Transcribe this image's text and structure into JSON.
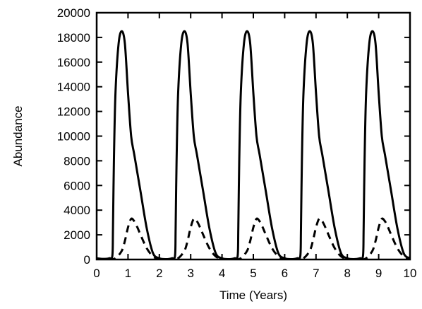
{
  "chart_data": {
    "type": "line",
    "title": "",
    "xlabel": "Time (Years)",
    "ylabel": "Abundance",
    "xlim": [
      0,
      10
    ],
    "ylim": [
      0,
      20000
    ],
    "xticks": [
      0,
      1,
      2,
      3,
      4,
      5,
      6,
      7,
      8,
      9,
      10
    ],
    "yticks": [
      0,
      2000,
      4000,
      6000,
      8000,
      10000,
      12000,
      14000,
      16000,
      18000,
      20000
    ],
    "grid": false,
    "legend": "none",
    "series": [
      {
        "style": "solid",
        "color": "#000000",
        "x": [
          0,
          0.2,
          0.4,
          0.5,
          0.52,
          0.55,
          0.6,
          0.7,
          0.8,
          0.9,
          1.0,
          1.1,
          1.2,
          1.4,
          1.6,
          1.8,
          2.0,
          2.2,
          2.4,
          2.5,
          2.52,
          2.55,
          2.6,
          2.7,
          2.8,
          2.9,
          3.0,
          3.1,
          3.2,
          3.4,
          3.6,
          3.8,
          4.0,
          4.2,
          4.4,
          4.5,
          4.52,
          4.55,
          4.6,
          4.7,
          4.8,
          4.9,
          5.0,
          5.1,
          5.2,
          5.4,
          5.6,
          5.8,
          6.0,
          6.2,
          6.4,
          6.5,
          6.52,
          6.55,
          6.6,
          6.7,
          6.8,
          6.9,
          7.0,
          7.1,
          7.2,
          7.4,
          7.6,
          7.8,
          8.0,
          8.2,
          8.4,
          8.5,
          8.52,
          8.55,
          8.6,
          8.7,
          8.8,
          8.9,
          9.0,
          9.1,
          9.2,
          9.4,
          9.6,
          9.8,
          10.0
        ],
        "y": [
          100,
          50,
          100,
          300,
          2500,
          8000,
          13500,
          17500,
          18500,
          17500,
          13500,
          10000,
          8500,
          5500,
          2500,
          500,
          100,
          30,
          100,
          300,
          2500,
          8000,
          13500,
          17500,
          18500,
          17500,
          13500,
          10000,
          8500,
          5500,
          2500,
          500,
          100,
          30,
          100,
          300,
          2500,
          8000,
          13500,
          17500,
          18500,
          17500,
          13500,
          10000,
          8500,
          5500,
          2500,
          500,
          100,
          30,
          100,
          300,
          2500,
          8000,
          13500,
          17500,
          18500,
          17500,
          13500,
          10000,
          8500,
          5500,
          2500,
          500,
          100,
          30,
          100,
          300,
          2500,
          8000,
          13500,
          17500,
          18500,
          17500,
          13500,
          10000,
          8500,
          5500,
          2500,
          500,
          100
        ]
      },
      {
        "style": "dashed",
        "color": "#000000",
        "x": [
          0,
          0.4,
          0.6,
          0.8,
          0.9,
          1.0,
          1.1,
          1.2,
          1.3,
          1.4,
          1.6,
          1.8,
          2.0,
          2.4,
          2.6,
          2.8,
          2.9,
          3.0,
          3.1,
          3.2,
          3.3,
          3.4,
          3.6,
          3.8,
          4.0,
          4.4,
          4.6,
          4.8,
          4.9,
          5.0,
          5.1,
          5.2,
          5.3,
          5.4,
          5.6,
          5.8,
          6.0,
          6.4,
          6.6,
          6.8,
          6.9,
          7.0,
          7.1,
          7.2,
          7.3,
          7.4,
          7.6,
          7.8,
          8.0,
          8.4,
          8.6,
          8.8,
          8.9,
          9.0,
          9.1,
          9.2,
          9.3,
          9.4,
          9.6,
          9.8,
          10.0
        ],
        "y": [
          0,
          0,
          100,
          700,
          1500,
          2600,
          3300,
          3100,
          2600,
          2000,
          900,
          250,
          50,
          0,
          100,
          700,
          1500,
          2600,
          3300,
          3100,
          2600,
          2000,
          900,
          250,
          50,
          0,
          100,
          700,
          1500,
          2600,
          3300,
          3100,
          2600,
          2000,
          900,
          250,
          50,
          0,
          100,
          700,
          1500,
          2600,
          3300,
          3100,
          2600,
          2000,
          900,
          250,
          50,
          0,
          100,
          700,
          1500,
          2600,
          3300,
          3100,
          2600,
          2000,
          900,
          250,
          50
        ]
      }
    ]
  }
}
